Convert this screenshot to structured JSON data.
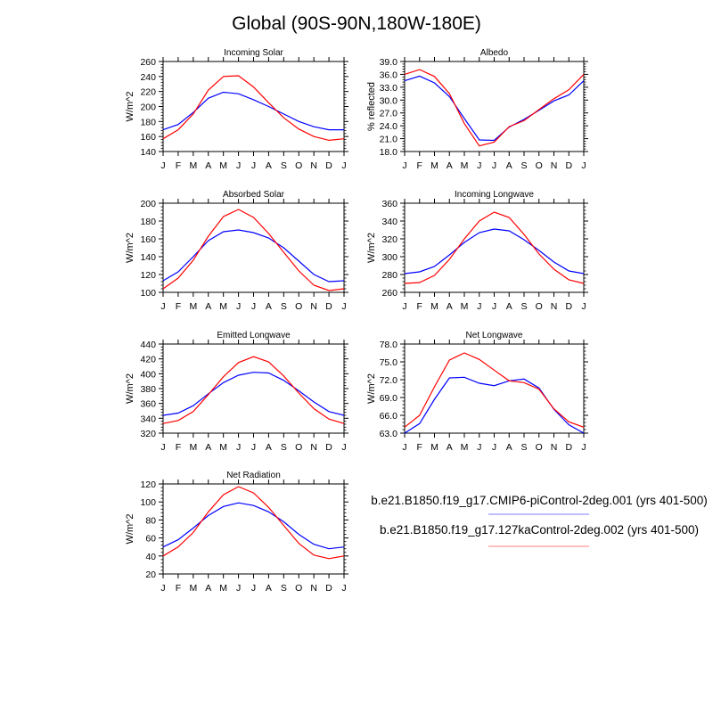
{
  "title": "Global (90S-90N,180W-180E)",
  "colors": {
    "series1": "#0000ff",
    "series2": "#ff0000",
    "legend1": "#aaaaff",
    "legend2": "#ffaaaa"
  },
  "legend": [
    {
      "label": "b.e21.B1850.f19_g17.CMIP6-piControl-2deg.001 (yrs 401-500)"
    },
    {
      "label": "b.e21.B1850.f19_g17.127kaControl-2deg.002 (yrs 401-500)"
    }
  ],
  "chart_data": [
    {
      "type": "line",
      "title": "Incoming Solar",
      "ylabel": "W/m^2",
      "ylim": [
        140,
        260
      ],
      "yticks": [
        "140",
        "160",
        "180",
        "200",
        "220",
        "240",
        "260"
      ],
      "categories": [
        "J",
        "F",
        "M",
        "A",
        "M",
        "J",
        "J",
        "A",
        "S",
        "O",
        "N",
        "D",
        "J"
      ],
      "series": [
        {
          "name": "b.e21.B1850.f19_g17.CMIP6-piControl-2deg.001",
          "values": [
            169,
            176,
            192,
            211,
            219,
            217,
            209,
            200,
            190,
            180,
            173,
            169,
            169
          ]
        },
        {
          "name": "b.e21.B1850.f19_g17.127kaControl-2deg.002",
          "values": [
            157,
            169,
            190,
            222,
            240,
            241,
            226,
            205,
            185,
            170,
            160,
            155,
            157
          ]
        }
      ]
    },
    {
      "type": "line",
      "title": "Albedo",
      "ylabel": "% reflected",
      "ylim": [
        18,
        39
      ],
      "yticks": [
        "18.0",
        "21.0",
        "24.0",
        "27.0",
        "30.0",
        "33.0",
        "36.0",
        "39.0"
      ],
      "categories": [
        "J",
        "F",
        "M",
        "A",
        "M",
        "J",
        "J",
        "A",
        "S",
        "O",
        "N",
        "D",
        "J"
      ],
      "series": [
        {
          "name": "b.e21.B1850.f19_g17.CMIP6-piControl-2deg.001",
          "values": [
            34.5,
            35.6,
            34.0,
            30.8,
            25.7,
            20.7,
            20.6,
            23.7,
            25.5,
            27.6,
            29.8,
            31.2,
            34.5
          ]
        },
        {
          "name": "b.e21.B1850.f19_g17.127kaControl-2deg.002",
          "values": [
            36.0,
            37.1,
            35.5,
            31.5,
            24.5,
            19.3,
            20.2,
            23.8,
            25.2,
            27.8,
            30.3,
            32.4,
            36.0
          ]
        }
      ]
    },
    {
      "type": "line",
      "title": "Absorbed Solar",
      "ylabel": "W/m^2",
      "ylim": [
        100,
        200
      ],
      "yticks": [
        "100",
        "120",
        "140",
        "160",
        "180",
        "200"
      ],
      "categories": [
        "J",
        "F",
        "M",
        "A",
        "M",
        "J",
        "J",
        "A",
        "S",
        "O",
        "N",
        "D",
        "J"
      ],
      "series": [
        {
          "name": "b.e21.B1850.f19_g17.CMIP6-piControl-2deg.001",
          "values": [
            113,
            123,
            140,
            158,
            168,
            170,
            167,
            161,
            150,
            135,
            120,
            112,
            113
          ]
        },
        {
          "name": "b.e21.B1850.f19_g17.127kaControl-2deg.002",
          "values": [
            104,
            116,
            136,
            163,
            185,
            193,
            184,
            166,
            145,
            124,
            108,
            102,
            104
          ]
        }
      ]
    },
    {
      "type": "line",
      "title": "Incoming Longwave",
      "ylabel": "W/m^2",
      "ylim": [
        260,
        360
      ],
      "yticks": [
        "260",
        "280",
        "300",
        "320",
        "340",
        "360"
      ],
      "categories": [
        "J",
        "F",
        "M",
        "A",
        "M",
        "J",
        "J",
        "A",
        "S",
        "O",
        "N",
        "D",
        "J"
      ],
      "series": [
        {
          "name": "b.e21.B1850.f19_g17.CMIP6-piControl-2deg.001",
          "values": [
            281,
            283,
            289,
            302,
            316,
            327,
            331,
            329,
            319,
            307,
            294,
            284,
            281
          ]
        },
        {
          "name": "b.e21.B1850.f19_g17.127kaControl-2deg.002",
          "values": [
            270,
            271,
            279,
            297,
            320,
            340,
            350,
            344,
            325,
            303,
            286,
            274,
            270
          ]
        }
      ]
    },
    {
      "type": "line",
      "title": "Emitted Longwave",
      "ylabel": "W/m^2",
      "ylim": [
        320,
        440
      ],
      "yticks": [
        "320",
        "340",
        "360",
        "380",
        "400",
        "420",
        "440"
      ],
      "categories": [
        "J",
        "F",
        "M",
        "A",
        "M",
        "J",
        "J",
        "A",
        "S",
        "O",
        "N",
        "D",
        "J"
      ],
      "series": [
        {
          "name": "b.e21.B1850.f19_g17.CMIP6-piControl-2deg.001",
          "values": [
            344,
            347,
            357,
            373,
            388,
            398,
            402,
            401,
            391,
            377,
            362,
            349,
            344
          ]
        },
        {
          "name": "b.e21.B1850.f19_g17.127kaControl-2deg.002",
          "values": [
            333,
            337,
            349,
            372,
            396,
            415,
            423,
            416,
            397,
            374,
            353,
            339,
            333
          ]
        }
      ]
    },
    {
      "type": "line",
      "title": "Net Longwave",
      "ylabel": "W/m^2",
      "ylim": [
        63,
        78
      ],
      "yticks": [
        "63.0",
        "66.0",
        "69.0",
        "72.0",
        "75.0",
        "78.0"
      ],
      "categories": [
        "J",
        "F",
        "M",
        "A",
        "M",
        "J",
        "J",
        "A",
        "S",
        "O",
        "N",
        "D",
        "J"
      ],
      "series": [
        {
          "name": "b.e21.B1850.f19_g17.CMIP6-piControl-2deg.001",
          "values": [
            63.0,
            64.6,
            68.7,
            72.3,
            72.4,
            71.4,
            71.0,
            71.8,
            72.1,
            70.6,
            67.0,
            64.4,
            63.0
          ]
        },
        {
          "name": "b.e21.B1850.f19_g17.127kaControl-2deg.002",
          "values": [
            64.0,
            66.0,
            70.8,
            75.3,
            76.5,
            75.4,
            73.6,
            71.8,
            71.5,
            70.4,
            67.1,
            64.9,
            64.0
          ]
        }
      ]
    },
    {
      "type": "line",
      "title": "Net Radiation",
      "ylabel": "W/m^2",
      "ylim": [
        20,
        120
      ],
      "yticks": [
        "20",
        "40",
        "60",
        "80",
        "100",
        "120"
      ],
      "categories": [
        "J",
        "F",
        "M",
        "A",
        "M",
        "J",
        "J",
        "A",
        "S",
        "O",
        "N",
        "D",
        "J"
      ],
      "series": [
        {
          "name": "b.e21.B1850.f19_g17.CMIP6-piControl-2deg.001",
          "values": [
            50,
            58,
            71,
            85,
            95,
            99,
            96,
            89,
            78,
            64,
            53,
            48,
            50
          ]
        },
        {
          "name": "b.e21.B1850.f19_g17.127kaControl-2deg.002",
          "values": [
            40,
            50,
            66,
            89,
            108,
            117,
            110,
            94,
            74,
            54,
            41,
            37,
            40
          ]
        }
      ]
    }
  ]
}
